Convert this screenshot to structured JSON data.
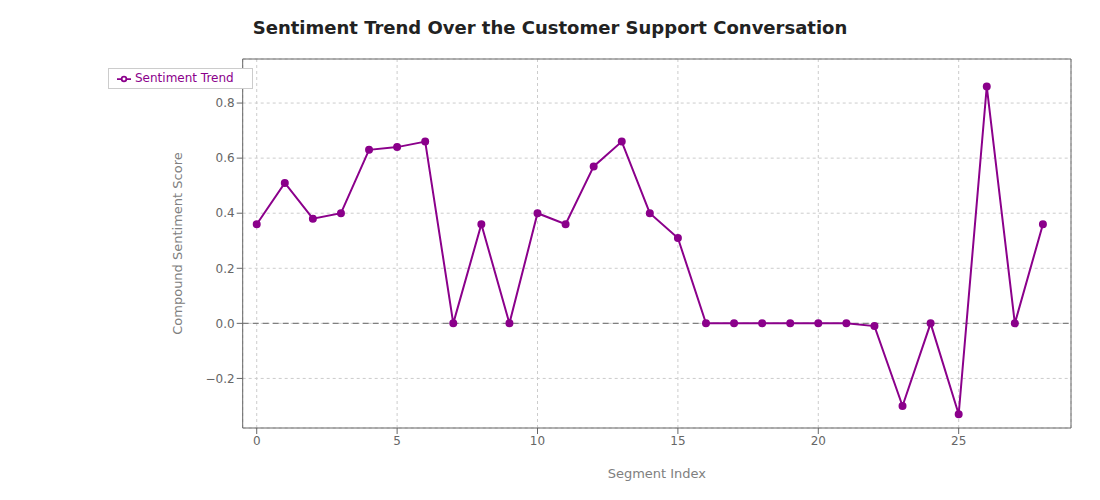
{
  "chart_data": {
    "type": "line",
    "title": "Sentiment Trend Over the Customer Support Conversation",
    "x_label": "Segment Index",
    "y_label": "Compound Sentiment Score",
    "x": [
      0,
      1,
      2,
      3,
      4,
      5,
      6,
      7,
      8,
      9,
      10,
      11,
      12,
      13,
      14,
      15,
      16,
      17,
      18,
      19,
      20,
      21,
      22,
      23,
      24,
      25,
      26,
      27,
      28
    ],
    "series": [
      {
        "name": "Sentiment Trend",
        "color": "#8B008B",
        "marker": "circle",
        "line_style": "solid",
        "values": [
          0.36,
          0.51,
          0.38,
          0.4,
          0.63,
          0.64,
          0.66,
          0.0,
          0.36,
          0.0,
          0.4,
          0.36,
          0.57,
          0.66,
          0.4,
          0.31,
          0.0,
          0.0,
          0.0,
          0.0,
          0.0,
          0.0,
          -0.01,
          -0.3,
          0.0,
          -0.33,
          0.86,
          0.0,
          0.36
        ]
      }
    ],
    "xlim": [
      -0.5,
      29
    ],
    "ylim": [
      -0.38,
      0.96
    ],
    "xticks": [
      0,
      5,
      10,
      15,
      20,
      25
    ],
    "yticks": [
      {
        "value": -0.2,
        "label": "−0.2"
      },
      {
        "value": 0.0,
        "label": "0.0"
      },
      0.2,
      0.4,
      0.6,
      0.8
    ],
    "hline": {
      "y": 0.0,
      "color": "#808080",
      "line_style": "dashed"
    },
    "grid": true,
    "legend": "upper left"
  }
}
